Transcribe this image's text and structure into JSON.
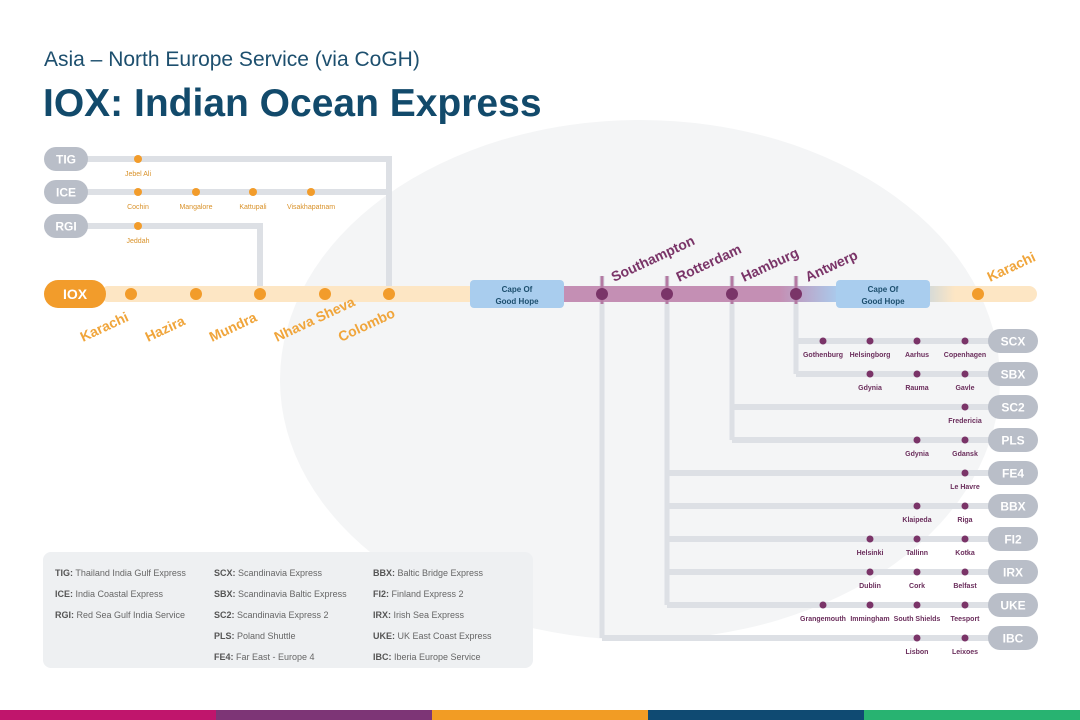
{
  "header": {
    "subtitle": "Asia – North Europe Service (via CoGH)",
    "title": "IOX: Indian Ocean Express"
  },
  "colors": {
    "orange": "#f29c2b",
    "purple": "#7a3468",
    "cape": "#a9cdee",
    "feeder": "#b9bec8",
    "title": "#124a6b",
    "bars": [
      "#c0156c",
      "#7d3576",
      "#f29c24",
      "#0f4a72",
      "#28b371"
    ]
  },
  "main": {
    "service": "IOX",
    "asia_ports": [
      "Karachi",
      "Hazira",
      "Mundra",
      "Nhava Sheva",
      "Colombo"
    ],
    "cape_label_1": "Cape Of",
    "cape_label_2": "Good Hope",
    "europe_ports": [
      "Southampton",
      "Rotterdam",
      "Hamburg",
      "Antwerp"
    ],
    "end_port": "Karachi"
  },
  "feeders": [
    {
      "code": "TIG",
      "ports": [
        "Jebel Ali"
      ],
      "joins": "Colombo"
    },
    {
      "code": "ICE",
      "ports": [
        "Cochin",
        "Mangalore",
        "Kattupali",
        "Visakhapatnam"
      ],
      "joins": "Colombo"
    },
    {
      "code": "RGI",
      "ports": [
        "Jeddah"
      ],
      "joins": "Mundra"
    }
  ],
  "europe_feeders": [
    {
      "code": "SCX",
      "from": "Antwerp",
      "ports": [
        "Gothenburg",
        "Helsingborg",
        "Aarhus",
        "Copenhagen"
      ]
    },
    {
      "code": "SBX",
      "from": "Antwerp",
      "ports": [
        "",
        "Gdynia",
        "Rauma",
        "Gavle"
      ]
    },
    {
      "code": "SC2",
      "from": "Hamburg",
      "ports": [
        "",
        "",
        "",
        "Fredericia"
      ]
    },
    {
      "code": "PLS",
      "from": "Hamburg",
      "ports": [
        "",
        "",
        "Gdynia",
        "Gdansk"
      ]
    },
    {
      "code": "FE4",
      "from": "Rotterdam",
      "ports": [
        "",
        "",
        "",
        "Le Havre"
      ]
    },
    {
      "code": "BBX",
      "from": "Rotterdam",
      "ports": [
        "",
        "",
        "Klaipeda",
        "Riga"
      ]
    },
    {
      "code": "FI2",
      "from": "Rotterdam",
      "ports": [
        "",
        "Helsinki",
        "Tallinn",
        "Kotka"
      ]
    },
    {
      "code": "IRX",
      "from": "Rotterdam",
      "ports": [
        "",
        "Dublin",
        "Cork",
        "Belfast"
      ]
    },
    {
      "code": "UKE",
      "from": "Rotterdam",
      "ports": [
        "Grangemouth",
        "Immingham",
        "South Shields",
        "Teesport"
      ]
    },
    {
      "code": "IBC",
      "from": "Southampton",
      "ports": [
        "",
        "",
        "Lisbon",
        "Leixoes"
      ]
    }
  ],
  "legend": [
    [
      {
        "code": "TIG:",
        "name": "Thailand India Gulf Express"
      },
      {
        "code": "ICE:",
        "name": "India Coastal Express"
      },
      {
        "code": "RGI:",
        "name": "Red Sea Gulf India Service"
      }
    ],
    [
      {
        "code": "SCX:",
        "name": "Scandinavia Express"
      },
      {
        "code": "SBX:",
        "name": "Scandinavia Baltic Express"
      },
      {
        "code": "SC2:",
        "name": "Scandinavia Express 2"
      },
      {
        "code": "PLS:",
        "name": "Poland Shuttle"
      },
      {
        "code": "FE4:",
        "name": "Far East - Europe 4"
      }
    ],
    [
      {
        "code": "BBX:",
        "name": "Baltic Bridge Express"
      },
      {
        "code": "FI2:",
        "name": "Finland Express 2"
      },
      {
        "code": "IRX:",
        "name": "Irish Sea Express"
      },
      {
        "code": "UKE:",
        "name": "UK East Coast Express"
      },
      {
        "code": "IBC:",
        "name": "Iberia Europe Service"
      }
    ]
  ]
}
